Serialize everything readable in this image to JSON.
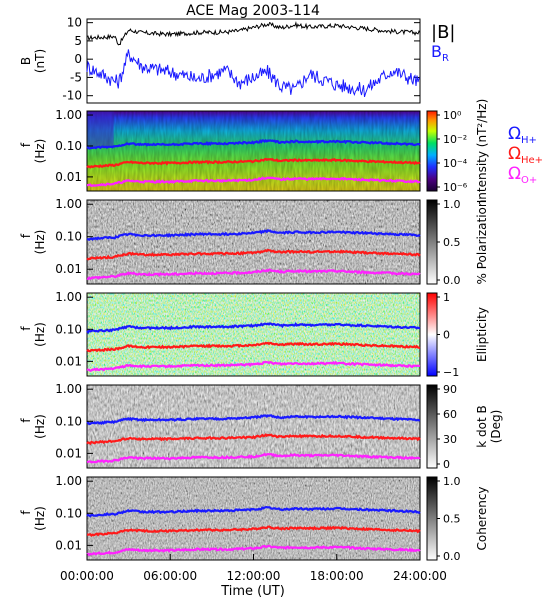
{
  "title": "ACE Mag 2003-114",
  "x_axis": {
    "label": "Time (UT)",
    "ticks": [
      "00:00:00",
      "06:00:00",
      "12:00:00",
      "18:00:00",
      "24:00:00"
    ]
  },
  "legend_top": {
    "total": "|B|",
    "radial": "B",
    "radial_sub": "R"
  },
  "legend_lines": [
    {
      "symbol": "Ω",
      "sub": "H+",
      "color": "#1a1aff"
    },
    {
      "symbol": "Ω",
      "sub": "He+",
      "color": "#ff1a1a"
    },
    {
      "symbol": "Ω",
      "sub": "O+",
      "color": "#ff22ff"
    }
  ],
  "colors": {
    "bt": "#000000",
    "br": "#1a1aff",
    "h": "#1a1aff",
    "he": "#ff1a1a",
    "o": "#ff22ff"
  },
  "chart_data": [
    {
      "type": "line",
      "panel": "B",
      "ylabel": "B",
      "yunit": "(nT)",
      "ylim": [
        -12,
        11
      ],
      "yticks": [
        "10",
        "5",
        "0",
        "-5",
        "-10"
      ],
      "x_hours": [
        0,
        2,
        2.3,
        3,
        4,
        6,
        8,
        10,
        11,
        13,
        14,
        15,
        16,
        18,
        20,
        22,
        24
      ],
      "series": [
        {
          "name": "|B|",
          "values": [
            5.8,
            6.2,
            4.0,
            8.0,
            7.2,
            6.8,
            7.3,
            7.4,
            7.8,
            9.6,
            8.6,
            9.4,
            8.8,
            9.2,
            8.4,
            7.6,
            7.2
          ]
        },
        {
          "name": "BR",
          "values": [
            -2.0,
            -6.0,
            -6.2,
            1.5,
            -2.0,
            -3.5,
            -5.5,
            -3.0,
            -6.5,
            -3.5,
            -7.5,
            -8.5,
            -4.0,
            -7.0,
            -8.5,
            -3.0,
            -6.5
          ]
        }
      ]
    },
    {
      "type": "heatmap",
      "panel": "spectrum",
      "ylabel": "f",
      "yunit": "(Hz)",
      "yticks": [
        "1.00",
        "0.10",
        "0.01"
      ],
      "colorbar_label": "Intensity (nT²/Hz)",
      "colorbar_ticks": [
        "10⁰",
        "10⁻²",
        "10⁻⁴",
        "10⁻⁶"
      ]
    },
    {
      "type": "heatmap",
      "panel": "polarization",
      "ylabel": "f",
      "yunit": "(Hz)",
      "yticks": [
        "1.00",
        "0.10",
        "0.01"
      ],
      "colorbar_label": "% Polarization",
      "colorbar_ticks": [
        "1.0",
        "0.5",
        "0.0"
      ]
    },
    {
      "type": "heatmap",
      "panel": "ellipticity",
      "ylabel": "f",
      "yunit": "(Hz)",
      "yticks": [
        "1.00",
        "0.10",
        "0.01"
      ],
      "colorbar_label": "Ellipticity",
      "colorbar_ticks": [
        "1",
        "0",
        "−1"
      ]
    },
    {
      "type": "heatmap",
      "panel": "kdotb",
      "ylabel": "f",
      "yunit": "(Hz)",
      "yticks": [
        "1.00",
        "0.10",
        "0.01"
      ],
      "colorbar_label": "k dot B (Deg)",
      "colorbar_label_lines": [
        "k dot B",
        "(Deg)"
      ],
      "colorbar_ticks": [
        "90",
        "60",
        "30",
        "0"
      ]
    },
    {
      "type": "heatmap",
      "panel": "coherency",
      "ylabel": "f",
      "yunit": "(Hz)",
      "yticks": [
        "1.00",
        "0.10",
        "0.01"
      ],
      "colorbar_label": "Coherency",
      "colorbar_ticks": [
        "1.0",
        "0.5",
        "0.0"
      ]
    },
    {
      "type": "line",
      "panel": "gyrofrequency overlays",
      "x_hours": [
        0,
        2,
        3,
        4,
        6,
        8,
        10,
        12,
        13,
        14,
        15,
        16,
        18,
        20,
        22,
        24
      ],
      "series": [
        {
          "name": "ΩH+",
          "values": [
            0.085,
            0.095,
            0.12,
            0.11,
            0.11,
            0.12,
            0.12,
            0.13,
            0.15,
            0.13,
            0.14,
            0.135,
            0.14,
            0.13,
            0.12,
            0.11
          ]
        },
        {
          "name": "ΩHe+",
          "values": [
            0.021,
            0.024,
            0.03,
            0.028,
            0.028,
            0.03,
            0.03,
            0.032,
            0.037,
            0.033,
            0.035,
            0.034,
            0.035,
            0.032,
            0.03,
            0.028
          ]
        },
        {
          "name": "ΩO+",
          "values": [
            0.0053,
            0.006,
            0.0075,
            0.007,
            0.007,
            0.0075,
            0.0075,
            0.008,
            0.0093,
            0.0083,
            0.0088,
            0.0085,
            0.0088,
            0.008,
            0.0075,
            0.007
          ]
        }
      ]
    }
  ]
}
